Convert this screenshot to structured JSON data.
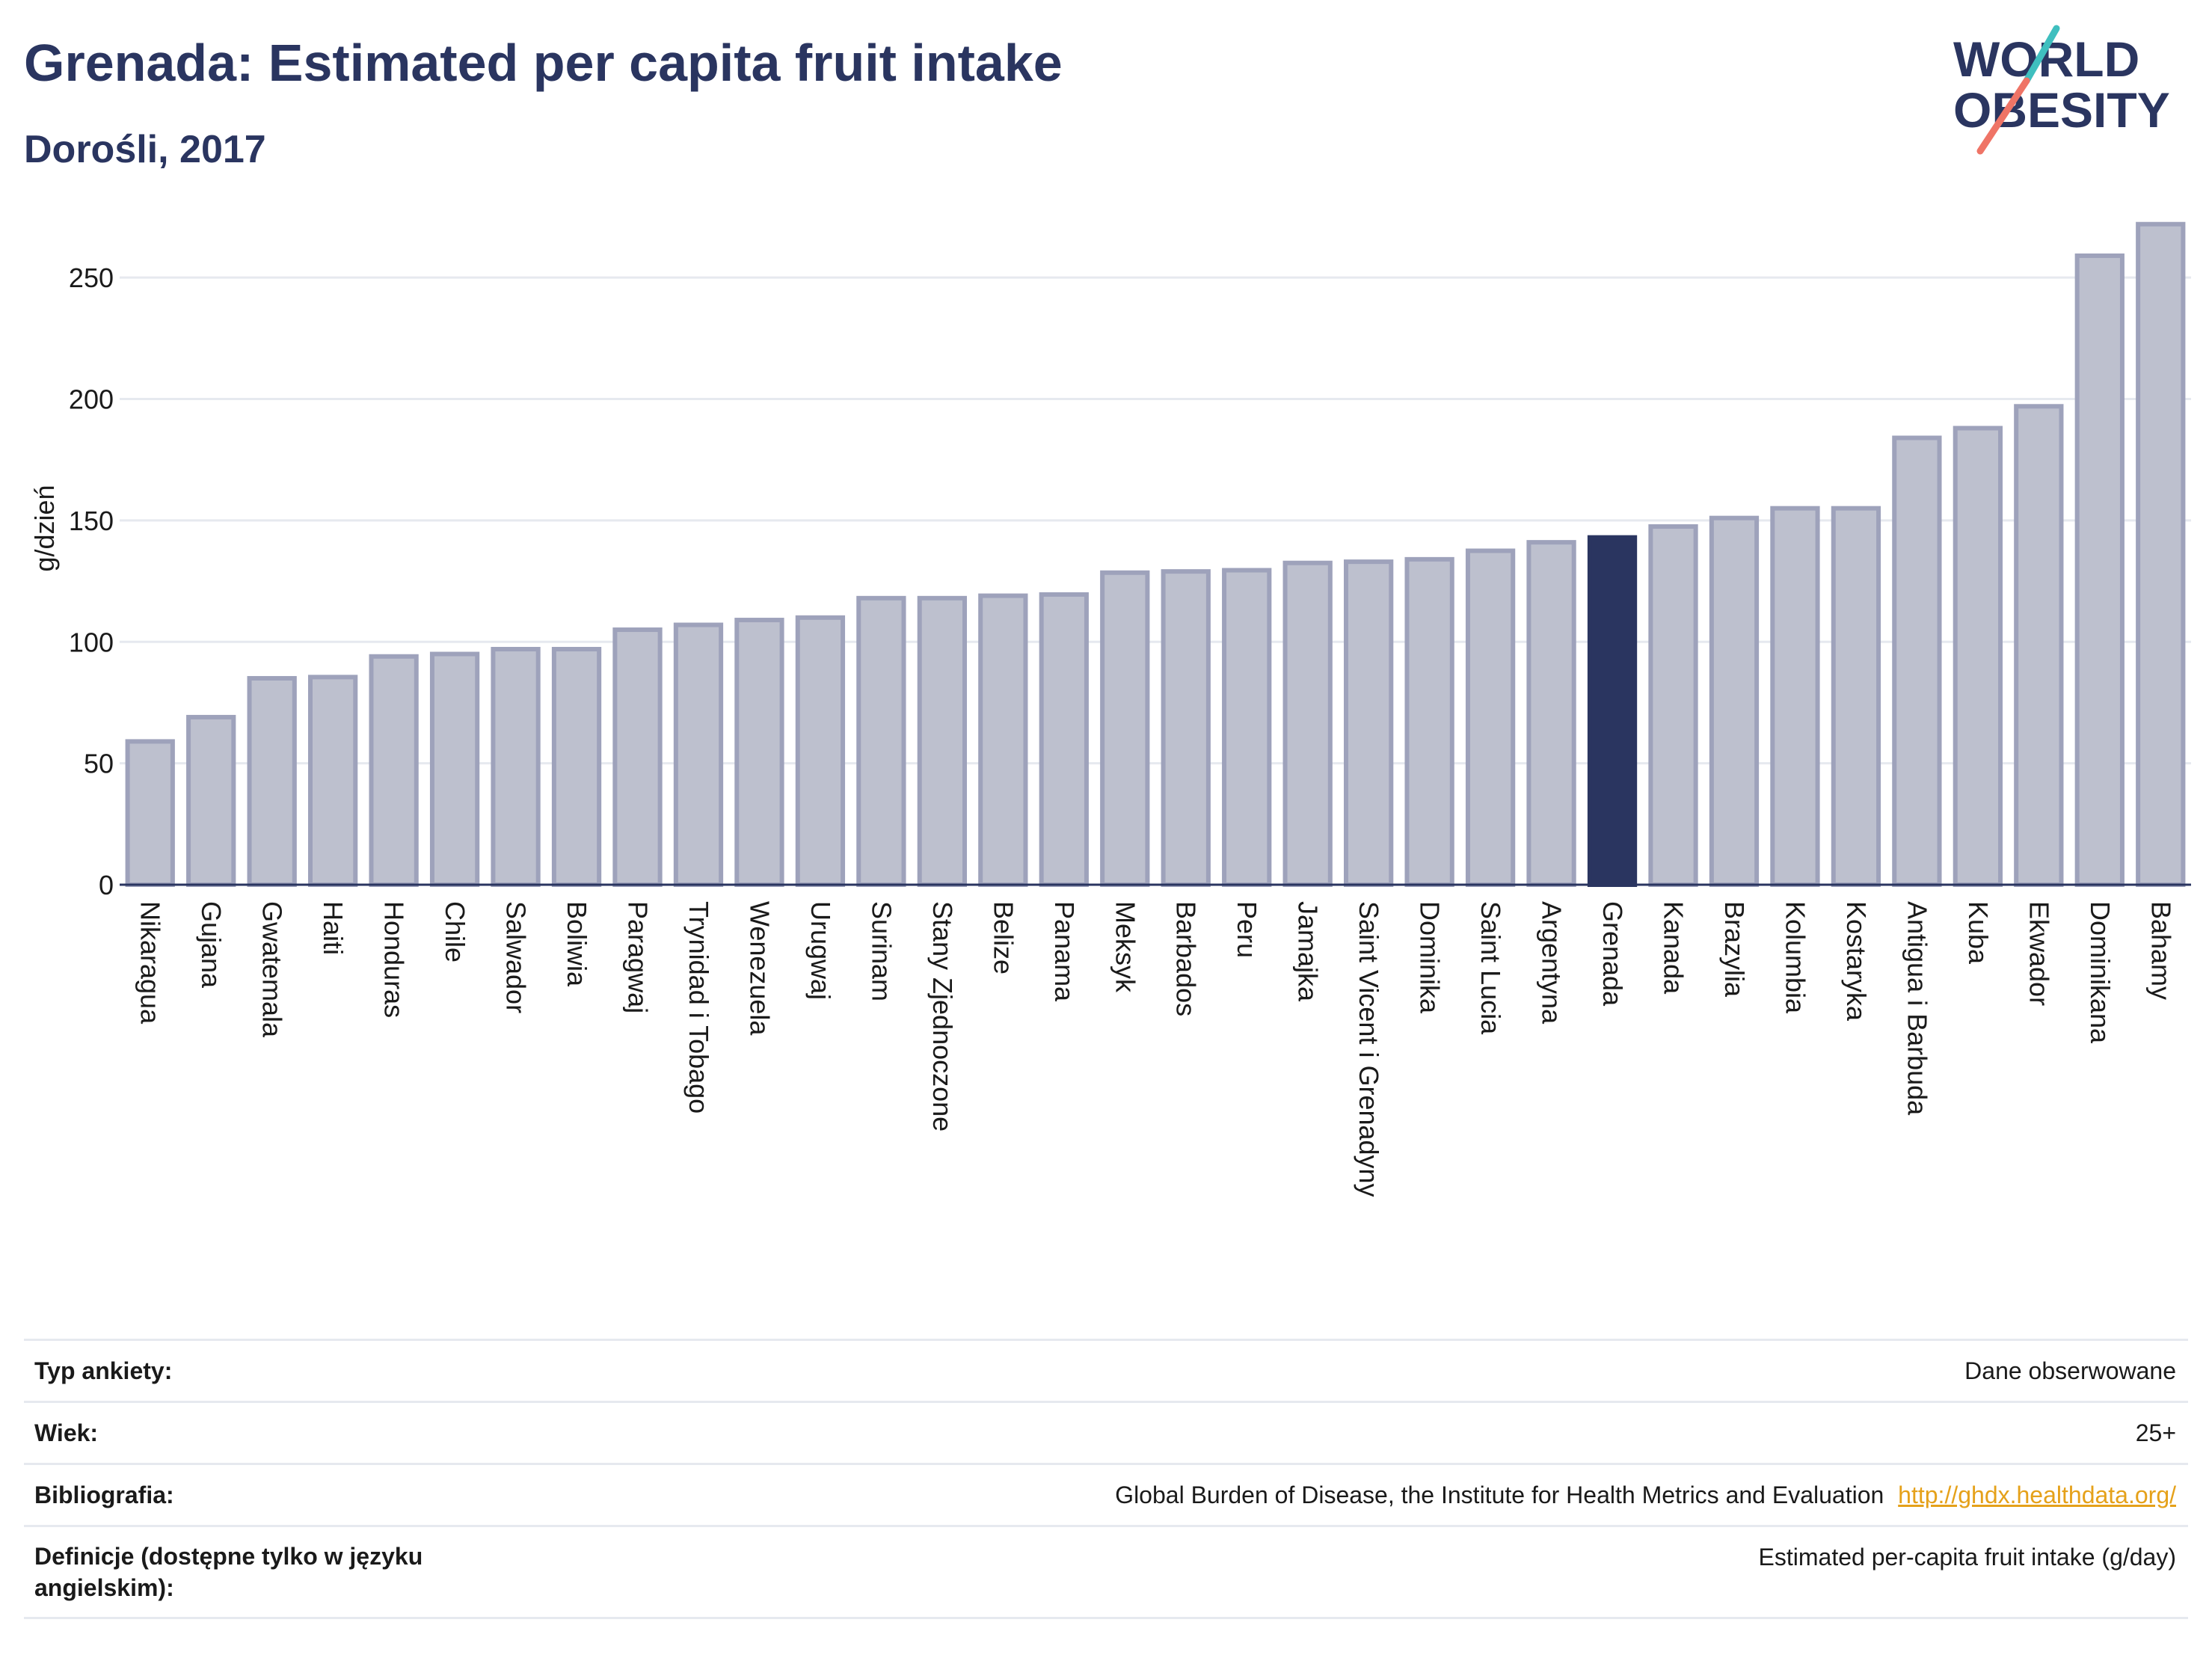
{
  "header": {
    "title": "Grenada: Estimated per capita fruit intake",
    "subtitle": "Dorośli, 2017",
    "logo_text_line1": "WORLD",
    "logo_text_line2": "OBESITY"
  },
  "colors": {
    "bar": "#bdc0ce",
    "bar_border": "#9ea2bb",
    "highlight": "#2a3560",
    "grid": "#e6e9ef",
    "axis": "#2a3560",
    "logo_teal": "#3fbfbf",
    "logo_coral": "#ef7466"
  },
  "chart_data": {
    "type": "bar",
    "title": "Grenada: Estimated per capita fruit intake",
    "subtitle": "Dorośli, 2017",
    "xlabel": "",
    "ylabel": "g/dzień",
    "ylim": [
      0,
      275
    ],
    "yticks": [
      0,
      50,
      100,
      150,
      200,
      250
    ],
    "grid": true,
    "highlight": "Grenada",
    "categories": [
      "Nikaragua",
      "Gujana",
      "Gwatemala",
      "Haiti",
      "Honduras",
      "Chile",
      "Salwador",
      "Boliwia",
      "Paragwaj",
      "Trynidad i Tobago",
      "Wenezuela",
      "Urugwaj",
      "Surinam",
      "Stany Zjednoczone",
      "Belize",
      "Panama",
      "Meksyk",
      "Barbados",
      "Peru",
      "Jamajka",
      "Saint Vicent i Grenadyny",
      "Dominika",
      "Saint Lucia",
      "Argentyna",
      "Grenada",
      "Kanada",
      "Brazylia",
      "Kolumbia",
      "Kostaryka",
      "Antigua i Barbuda",
      "Kuba",
      "Ekwador",
      "Dominikana",
      "Bahamy"
    ],
    "values": [
      59,
      69,
      85,
      85.5,
      94,
      95,
      97,
      97,
      105,
      107,
      109,
      110,
      118,
      118,
      119,
      119.5,
      128.5,
      129,
      129.5,
      132.5,
      133,
      134,
      137.5,
      141,
      143,
      147.5,
      151,
      155,
      155,
      184,
      188,
      197,
      259,
      272
    ]
  },
  "meta": {
    "rows": [
      {
        "key": "Typ ankiety:",
        "value": "Dane obserwowane"
      },
      {
        "key": "Wiek:",
        "value": "25+"
      },
      {
        "key": "Bibliografia:",
        "value": "Global Burden of Disease, the Institute for Health Metrics and Evaluation",
        "link": "http://ghdx.healthdata.org/"
      },
      {
        "key": "Definicje (dostępne tylko w języku angielskim):",
        "value": "Estimated per-capita fruit intake (g/day)"
      }
    ]
  }
}
